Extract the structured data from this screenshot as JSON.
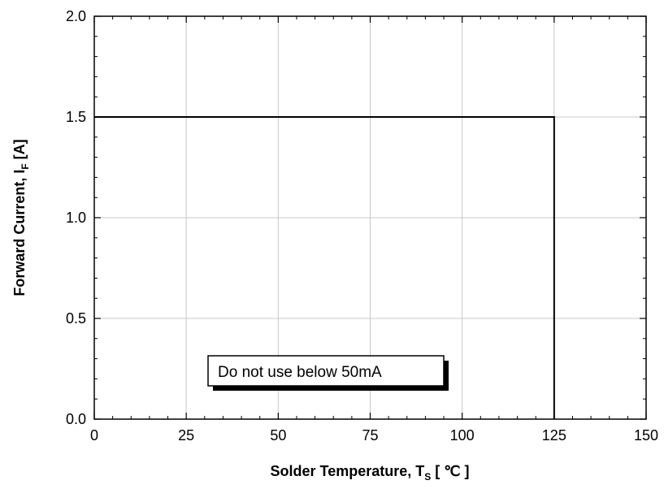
{
  "chart_data": {
    "type": "line",
    "x": [
      0,
      125,
      125
    ],
    "y": [
      1.5,
      1.5,
      0
    ],
    "xlim": [
      0,
      150
    ],
    "ylim": [
      0,
      2.0
    ],
    "x_ticks": [
      0,
      25,
      50,
      75,
      100,
      125,
      150
    ],
    "y_ticks": [
      0.0,
      0.5,
      1.0,
      1.5,
      2.0
    ],
    "x_tick_labels": [
      "0",
      "25",
      "50",
      "75",
      "100",
      "125",
      "150"
    ],
    "y_tick_labels": [
      "0.0",
      "0.5",
      "1.0",
      "1.5",
      "2.0"
    ],
    "xlabel": {
      "prefix": "Solder Temperature, T",
      "subscript": "S",
      "suffix": " [ ℃ ]"
    },
    "ylabel": {
      "prefix": "Forward Current, I",
      "subscript": "F",
      "suffix": " [A]"
    },
    "grid": true,
    "annotation": "Do not use below 50mA",
    "colors": {
      "line": "#000000",
      "grid": "#c8c8c8",
      "frame": "#000000",
      "shadow": "#000000"
    }
  }
}
